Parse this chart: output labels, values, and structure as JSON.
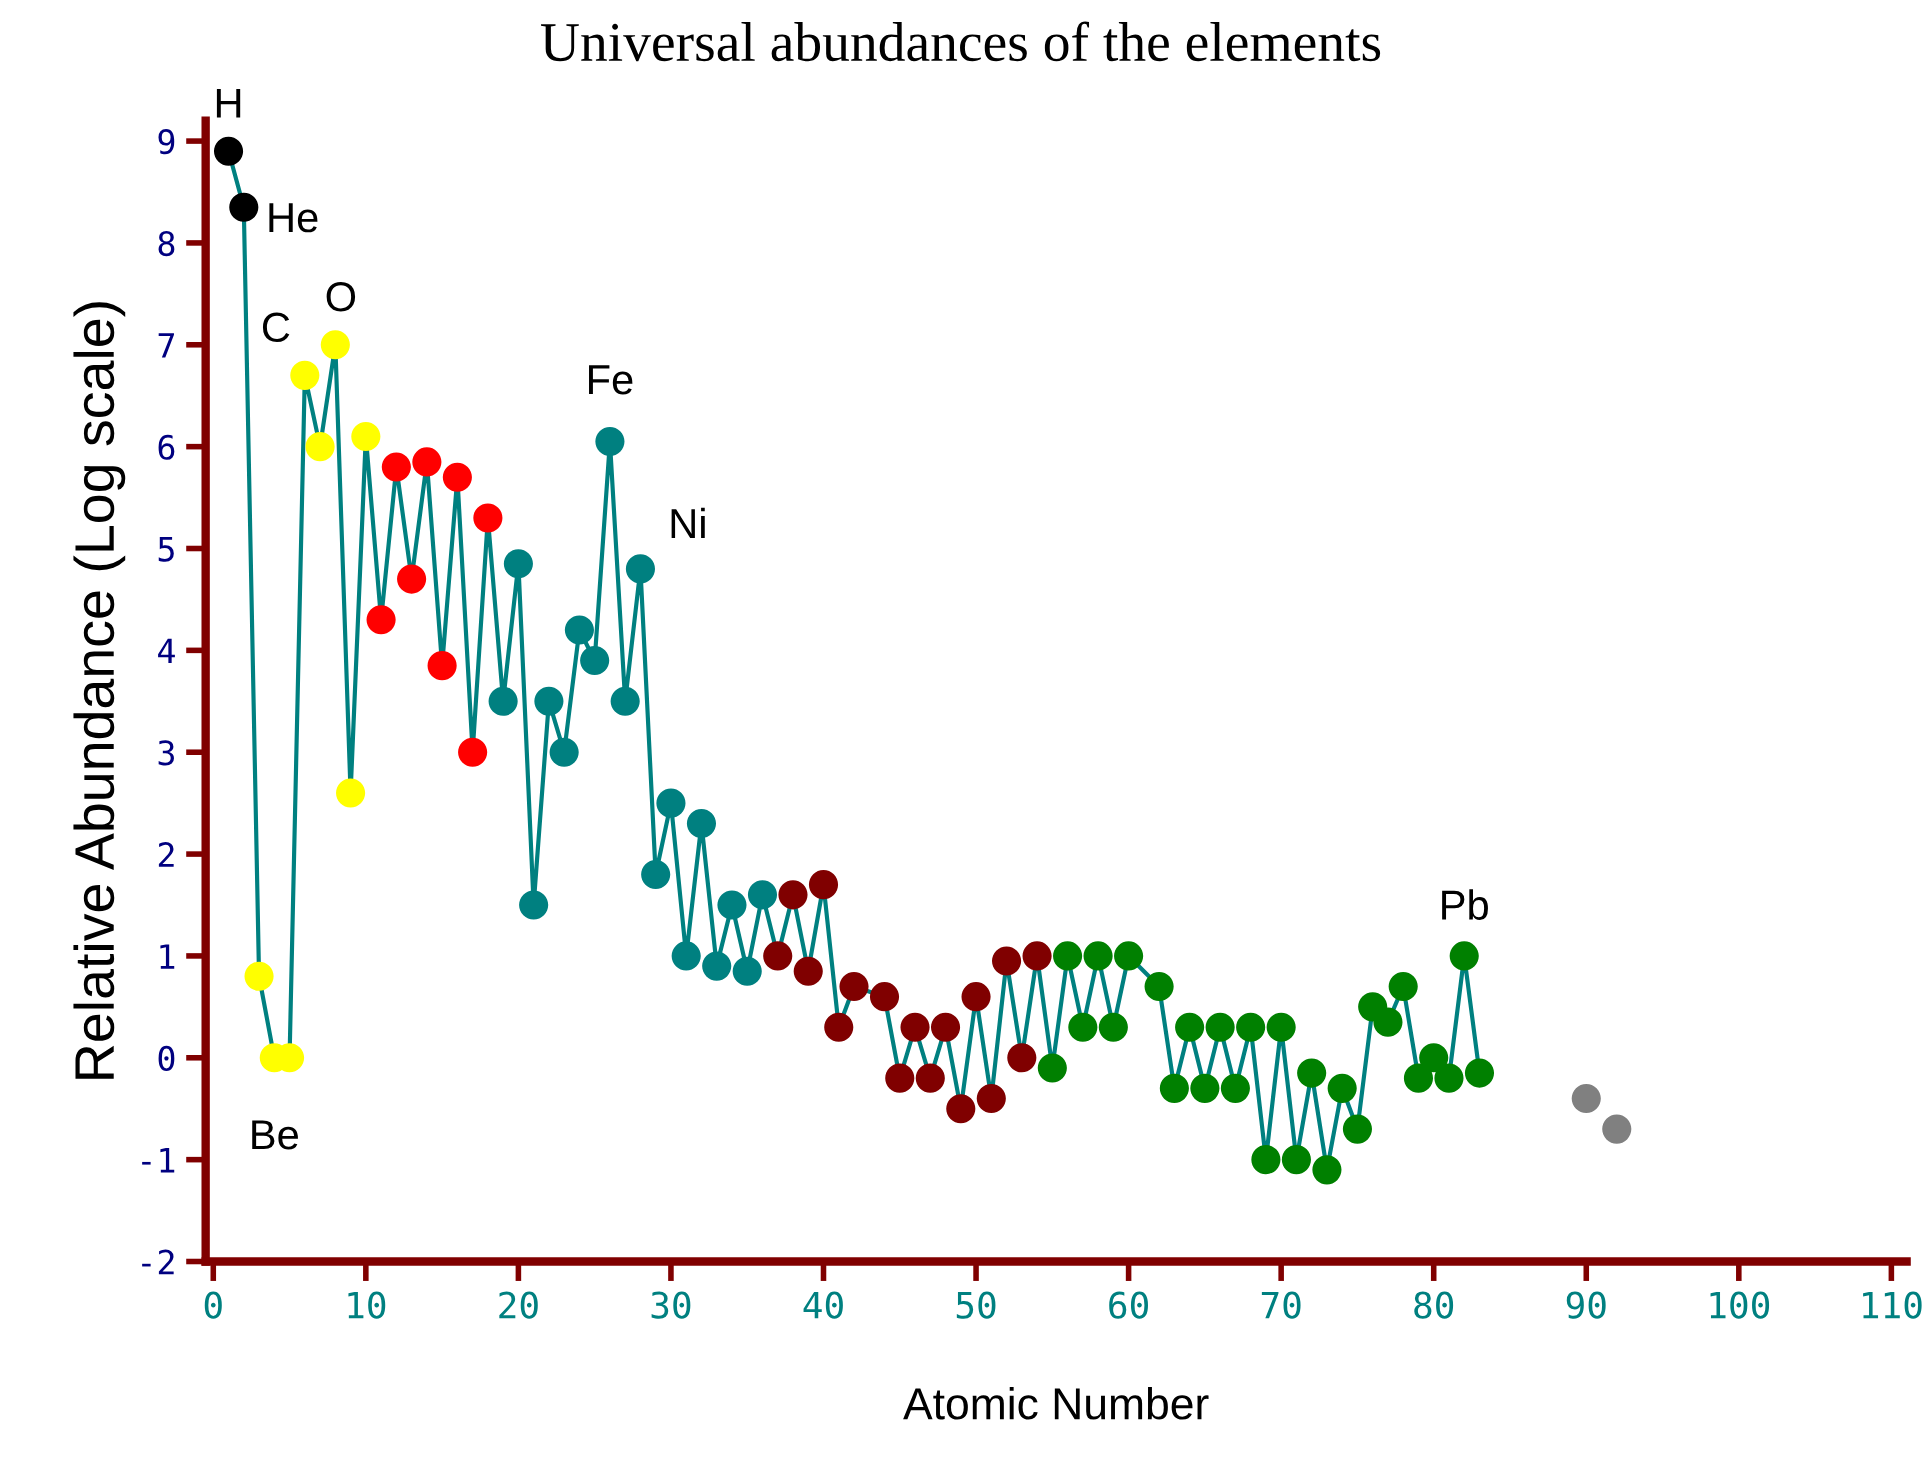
{
  "chart_data": {
    "type": "line",
    "title": "Universal abundances of the elements",
    "xlabel": "Atomic Number",
    "ylabel": "Relative Abundance (Log scale)",
    "xlim": [
      -0.5,
      111
    ],
    "xticks": [
      0,
      10,
      20,
      30,
      40,
      50,
      60,
      70,
      80,
      90,
      100,
      110
    ],
    "ylim": [
      -2,
      9.2
    ],
    "yticks": [
      -2,
      -1,
      0,
      1,
      2,
      3,
      4,
      5,
      6,
      7,
      8,
      9
    ],
    "grid": false,
    "legend": false,
    "marker": "circle",
    "line_style": "solid",
    "series": [
      {
        "color": "#008080",
        "x": [
          1,
          2,
          3,
          4,
          5,
          6,
          7,
          8,
          9,
          10,
          11,
          12,
          13,
          14,
          15,
          16,
          17,
          18,
          19,
          20,
          21,
          22,
          23,
          24,
          25,
          26,
          27,
          28,
          29,
          30,
          31,
          32,
          33,
          34,
          35,
          36,
          37,
          38,
          39,
          40,
          41,
          42,
          44,
          45,
          46,
          47,
          48,
          49,
          50,
          51,
          52,
          53,
          54,
          55,
          56,
          57,
          58,
          59,
          60,
          62,
          63,
          64,
          65,
          66,
          67,
          68,
          69,
          70,
          71,
          72,
          73,
          74,
          75,
          76,
          77,
          78,
          79,
          80,
          81,
          82,
          83
        ],
        "values": [
          8.9,
          8.35,
          0.8,
          0.0,
          0.0,
          6.7,
          6.0,
          7.0,
          2.6,
          6.1,
          4.3,
          5.8,
          4.7,
          5.85,
          3.85,
          5.7,
          3.0,
          5.3,
          3.5,
          4.85,
          1.5,
          3.5,
          3.0,
          4.2,
          3.9,
          6.05,
          3.5,
          4.8,
          1.8,
          2.5,
          1.0,
          2.3,
          0.9,
          1.5,
          0.85,
          1.6,
          1.0,
          1.6,
          0.85,
          1.7,
          0.3,
          0.7,
          0.6,
          -0.2,
          0.3,
          -0.2,
          0.3,
          -0.5,
          0.6,
          -0.4,
          0.95,
          0.0,
          1.0,
          -0.1,
          1.0,
          0.3,
          1.0,
          0.3,
          1.0,
          0.7,
          -0.3,
          0.3,
          -0.3,
          0.3,
          -0.3,
          0.3,
          -1.0,
          0.3,
          -1.0,
          -0.15,
          -1.1,
          -0.3,
          -0.7,
          0.5,
          0.35,
          0.7,
          -0.2,
          0.0,
          -0.2,
          1.0,
          -0.15
        ],
        "colors": [
          "#000000",
          "#000000",
          "#ffff00",
          "#ffff00",
          "#ffff00",
          "#ffff00",
          "#ffff00",
          "#ffff00",
          "#ffff00",
          "#ffff00",
          "#ff0000",
          "#ff0000",
          "#ff0000",
          "#ff0000",
          "#ff0000",
          "#ff0000",
          "#ff0000",
          "#ff0000",
          "#008080",
          "#008080",
          "#008080",
          "#008080",
          "#008080",
          "#008080",
          "#008080",
          "#008080",
          "#008080",
          "#008080",
          "#008080",
          "#008080",
          "#008080",
          "#008080",
          "#008080",
          "#008080",
          "#008080",
          "#008080",
          "#800000",
          "#800000",
          "#800000",
          "#800000",
          "#800000",
          "#800000",
          "#800000",
          "#800000",
          "#800000",
          "#800000",
          "#800000",
          "#800000",
          "#800000",
          "#800000",
          "#800000",
          "#800000",
          "#800000",
          "#008000",
          "#008000",
          "#008000",
          "#008000",
          "#008000",
          "#008000",
          "#008000",
          "#008000",
          "#008000",
          "#008000",
          "#008000",
          "#008000",
          "#008000",
          "#008000",
          "#008000",
          "#008000",
          "#008000",
          "#008000",
          "#008000",
          "#008000",
          "#008000",
          "#008000",
          "#008000",
          "#008000",
          "#008000",
          "#008000",
          "#008000",
          "#008000"
        ]
      },
      {
        "type": "scatter",
        "color": "#808080",
        "x": [
          90,
          92
        ],
        "values": [
          -0.4,
          -0.7
        ]
      }
    ],
    "annotations": [
      {
        "text": "H",
        "x": 1,
        "y": 8.9
      },
      {
        "text": "He",
        "x": 2,
        "y": 8.35
      },
      {
        "text": "C",
        "x": 6,
        "y": 6.7
      },
      {
        "text": "O",
        "x": 8,
        "y": 7.0
      },
      {
        "text": "Be",
        "x": 4,
        "y": 0.0
      },
      {
        "text": "Fe",
        "x": 26,
        "y": 6.05
      },
      {
        "text": "Ni",
        "x": 28,
        "y": 4.8
      },
      {
        "text": "Pb",
        "x": 82,
        "y": 1.0
      }
    ]
  }
}
